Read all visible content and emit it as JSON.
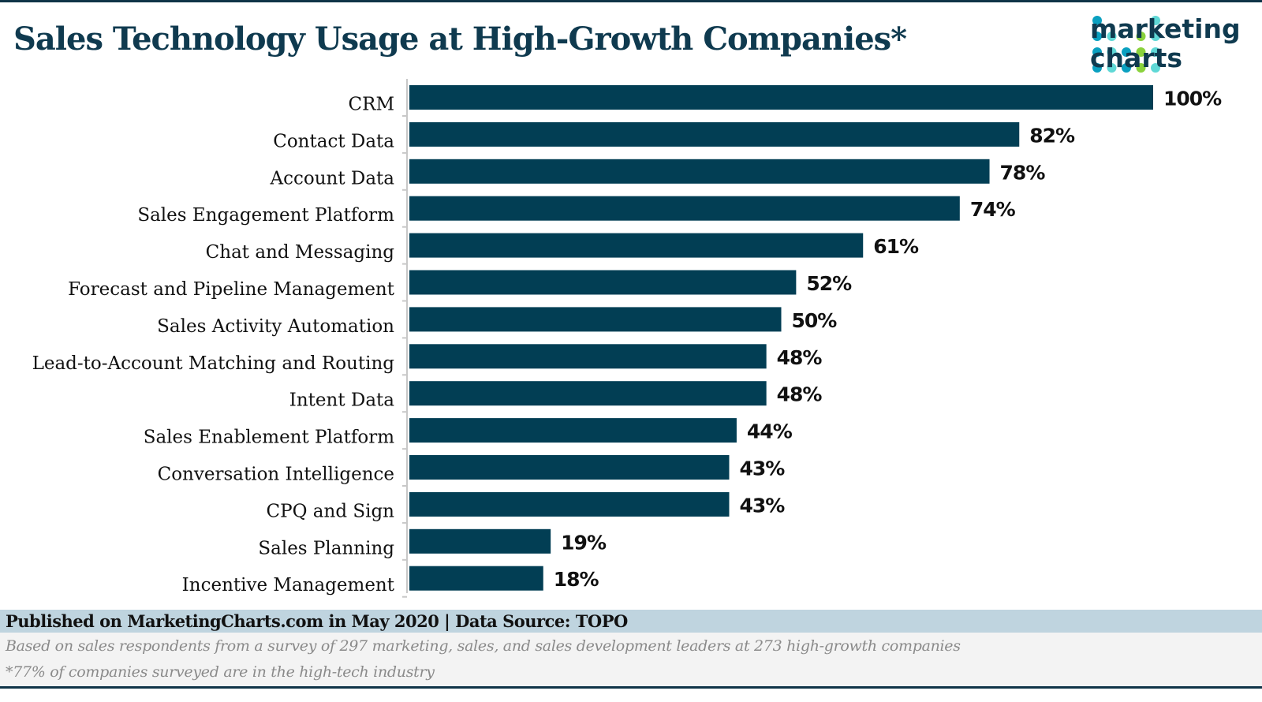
{
  "title": "Sales Technology Usage at High-Growth Companies*",
  "logo": {
    "line1": "marketing",
    "line2": "charts"
  },
  "colors": {
    "bar": "#023e54",
    "title": "#0f3a4f",
    "footer_band": "#bfd4df"
  },
  "chart_data": {
    "type": "bar",
    "orientation": "horizontal",
    "title": "Sales Technology Usage at High-Growth Companies*",
    "categories": [
      "CRM",
      "Contact Data",
      "Account Data",
      "Sales Engagement Platform",
      "Chat and Messaging",
      "Forecast and Pipeline Management",
      "Sales Activity Automation",
      "Lead-to-Account Matching and Routing",
      "Intent Data",
      "Sales Enablement Platform",
      "Conversation Intelligence",
      "CPQ and Sign",
      "Sales Planning",
      "Incentive Management"
    ],
    "values": [
      100,
      82,
      78,
      74,
      61,
      52,
      50,
      48,
      48,
      44,
      43,
      43,
      19,
      18
    ],
    "value_suffix": "%",
    "xlim": [
      0,
      100
    ],
    "grid": false,
    "legend": "none"
  },
  "footer": {
    "published": "Published on MarketingCharts.com in May 2020 | Data Source: TOPO",
    "note1": "Based on sales respondents from a survey of 297 marketing, sales, and sales development leaders at 273 high-growth companies",
    "note2": "*77% of companies surveyed are in the high-tech industry"
  }
}
